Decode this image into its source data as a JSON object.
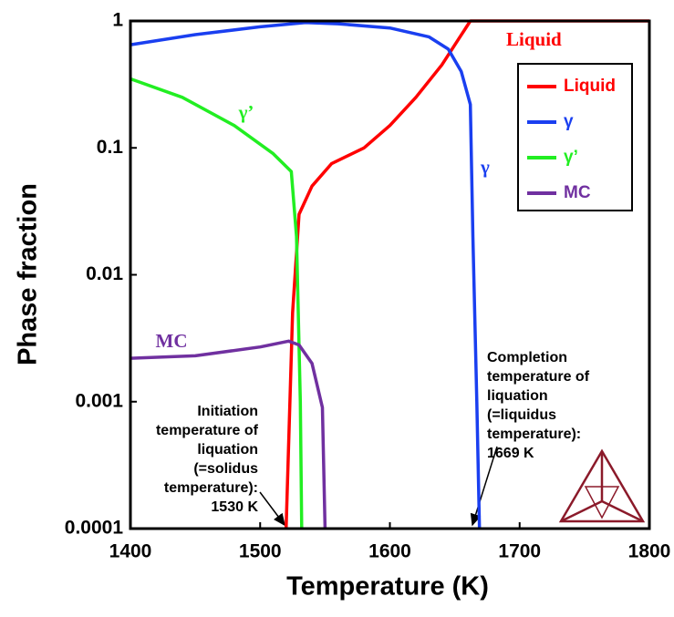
{
  "chart_data": {
    "type": "line",
    "x_label": "Temperature (K)",
    "y_label": "Phase fraction",
    "xlim": [
      1400,
      1800
    ],
    "xticks": [
      1400,
      1500,
      1600,
      1700,
      1800
    ],
    "ylim": [
      0.0001,
      1
    ],
    "yticks": [
      0.0001,
      0.001,
      0.01,
      0.1,
      1
    ],
    "y_scale": "log",
    "grid": false,
    "legend": "upper right",
    "series": [
      {
        "name": "Liquid",
        "color": "#ff0000",
        "x": [
          1520,
          1525,
          1530,
          1540,
          1555,
          1580,
          1600,
          1620,
          1640,
          1662,
          1800
        ],
        "values": [
          0.0001,
          0.005,
          0.03,
          0.05,
          0.075,
          0.1,
          0.15,
          0.25,
          0.45,
          1,
          1
        ]
      },
      {
        "name": "γ",
        "color": "#1a3ff0",
        "x": [
          1400,
          1450,
          1500,
          1535,
          1560,
          1600,
          1630,
          1645,
          1655,
          1662,
          1664,
          1667,
          1669
        ],
        "values": [
          0.65,
          0.78,
          0.9,
          0.97,
          0.95,
          0.88,
          0.75,
          0.6,
          0.4,
          0.22,
          0.02,
          0.001,
          0.0001
        ]
      },
      {
        "name": "γ’",
        "color": "#22ee22",
        "x": [
          1400,
          1440,
          1480,
          1510,
          1524,
          1528,
          1531,
          1532
        ],
        "values": [
          0.35,
          0.25,
          0.15,
          0.09,
          0.065,
          0.02,
          0.001,
          0.0001
        ]
      },
      {
        "name": "MC",
        "color": "#7030a0",
        "x": [
          1400,
          1450,
          1500,
          1522,
          1530,
          1540,
          1548,
          1550
        ],
        "values": [
          0.0022,
          0.0023,
          0.0027,
          0.003,
          0.0028,
          0.002,
          0.0009,
          0.0001
        ]
      }
    ],
    "annotations": [
      {
        "lines": [
          "Initiation",
          "temperature of",
          "liquation",
          "(=solidus",
          "temperature):",
          "1530 K"
        ]
      },
      {
        "lines": [
          "Completion",
          "temperature of",
          "liquation",
          "(=liquidus",
          "temperature):",
          "1669 K"
        ]
      }
    ]
  }
}
